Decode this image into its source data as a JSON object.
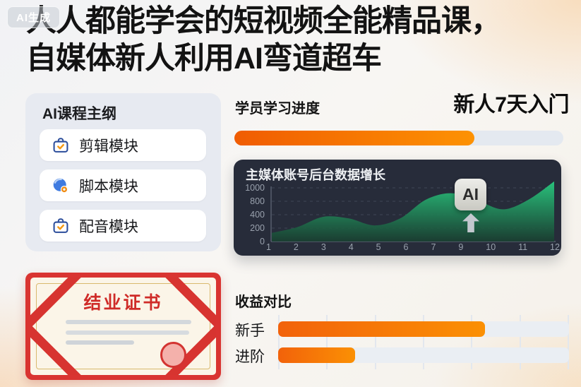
{
  "watermark": {
    "label": "AI生成"
  },
  "headline": {
    "line1": "人人都能学会的短视频全能精品课，",
    "line2": "自媒体新人利用AI弯道超车"
  },
  "sidebar": {
    "title": "AI课程主纲",
    "modules": [
      {
        "label": "剪辑模块",
        "icon": "briefcase-check-icon"
      },
      {
        "label": "脚本模块",
        "icon": "globe-gear-icon"
      },
      {
        "label": "配音模块",
        "icon": "briefcase-check-icon"
      }
    ]
  },
  "progress": {
    "label": "学员学习进度",
    "highlight": "新人7天入门",
    "percent": 73
  },
  "chart_data": {
    "type": "area",
    "title": "主媒体账号后台数据增长",
    "x": [
      1,
      2,
      3,
      4,
      5,
      6,
      7,
      8,
      9,
      10,
      11,
      12
    ],
    "x_tick_labels": [
      "1",
      "2",
      "3",
      "4",
      "5",
      "6",
      "7",
      "9",
      "10",
      "11",
      "12"
    ],
    "values": [
      160,
      270,
      460,
      430,
      300,
      430,
      780,
      900,
      770,
      600,
      780,
      1120
    ],
    "ylim": [
      0,
      1000
    ],
    "y_tick_labels_top_to_bottom": [
      "1000",
      "800",
      "400",
      "200",
      "0"
    ],
    "grid": "dashed-horizontal",
    "legend": "none",
    "annotation": {
      "label": "AI",
      "icon": "arrow-up-icon"
    }
  },
  "certificate": {
    "title": "结业证书"
  },
  "comparison": {
    "title": "收益对比",
    "rows": [
      {
        "label": "新手",
        "percent": 71
      },
      {
        "label": "进阶",
        "percent": 26.5
      }
    ]
  },
  "colors": {
    "accent_orange": "#f97106",
    "panel_dark": "#272c3a",
    "chart_green": "#2fe08f",
    "certificate_red": "#d2302d",
    "sidebar_bg": "#e7eaf1"
  }
}
